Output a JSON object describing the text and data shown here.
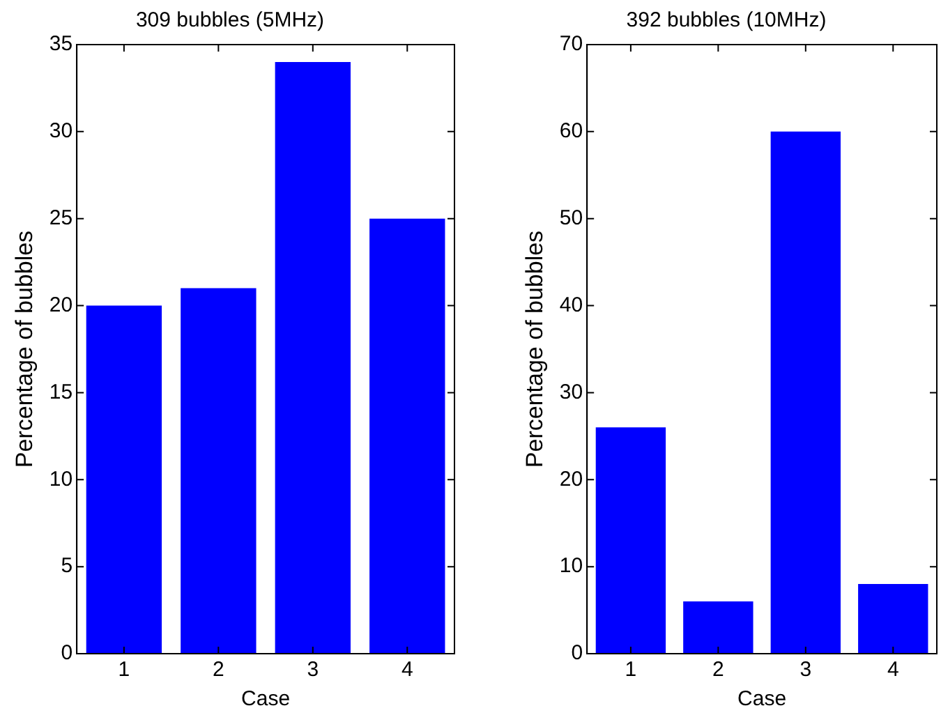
{
  "chart_data": [
    {
      "type": "bar",
      "title": "309 bubbles (5MHz)",
      "xlabel": "Case",
      "ylabel": "Percentage of bubbles",
      "categories": [
        "1",
        "2",
        "3",
        "4"
      ],
      "values": [
        20,
        21,
        34,
        25
      ],
      "color": "#0000ff",
      "ylim": [
        0,
        35
      ],
      "yticks": [
        0,
        5,
        10,
        15,
        20,
        25,
        30,
        35
      ],
      "grid": false
    },
    {
      "type": "bar",
      "title": "392 bubbles (10MHz)",
      "xlabel": "Case",
      "ylabel": "Percentage of bubbles",
      "categories": [
        "1",
        "2",
        "3",
        "4"
      ],
      "values": [
        26,
        6,
        60,
        8
      ],
      "color": "#0000ff",
      "ylim": [
        0,
        70
      ],
      "yticks": [
        0,
        10,
        20,
        30,
        40,
        50,
        60,
        70
      ],
      "grid": false
    }
  ]
}
